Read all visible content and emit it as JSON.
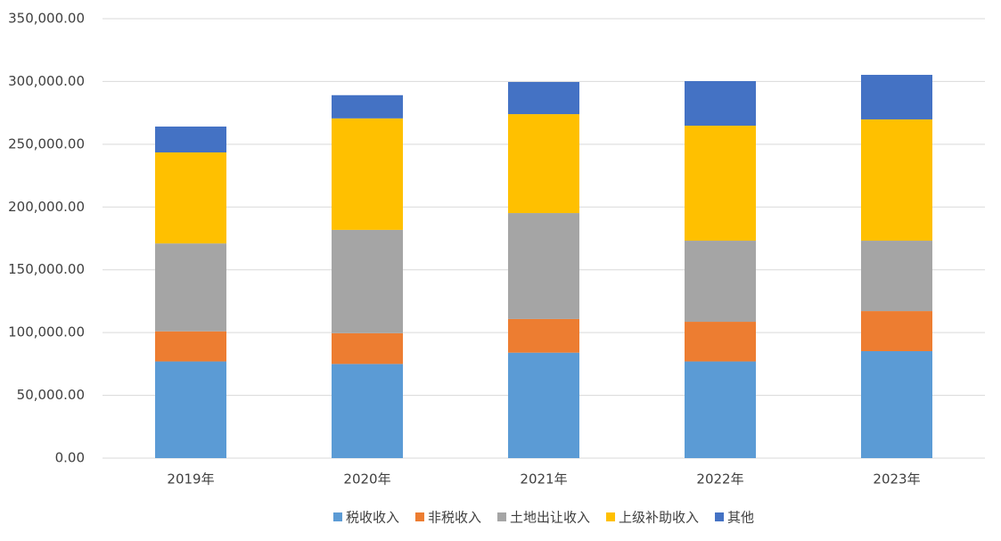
{
  "chart_data": {
    "type": "bar",
    "stacked": true,
    "categories": [
      "2019年",
      "2020年",
      "2021年",
      "2022年",
      "2023年"
    ],
    "series": [
      {
        "name": "税收收入",
        "color": "#5b9bd5",
        "values": [
          77000,
          75000,
          84000,
          77000,
          85200
        ]
      },
      {
        "name": "非税收入",
        "color": "#ed7d31",
        "values": [
          24000,
          24500,
          26800,
          31600,
          31900
        ]
      },
      {
        "name": "土地出让收入",
        "color": "#a5a5a5",
        "values": [
          70000,
          82300,
          84400,
          64600,
          56100
        ]
      },
      {
        "name": "上级补助收入",
        "color": "#ffc000",
        "values": [
          72500,
          88800,
          78800,
          91600,
          96600
        ]
      },
      {
        "name": "其他",
        "color": "#4472c4",
        "values": [
          20600,
          18500,
          25600,
          35500,
          35500
        ]
      }
    ],
    "ylim": [
      0,
      350000
    ],
    "yticks": [
      {
        "value": 0,
        "label": "0.00"
      },
      {
        "value": 50000,
        "label": "50,000.00"
      },
      {
        "value": 100000,
        "label": "100,000.00"
      },
      {
        "value": 150000,
        "label": "150,000.00"
      },
      {
        "value": 200000,
        "label": "200,000.00"
      },
      {
        "value": 250000,
        "label": "250,000.00"
      },
      {
        "value": 300000,
        "label": "300,000.00"
      },
      {
        "value": 350000,
        "label": "350,000.00"
      }
    ],
    "grid": true,
    "legend": "bottom"
  }
}
